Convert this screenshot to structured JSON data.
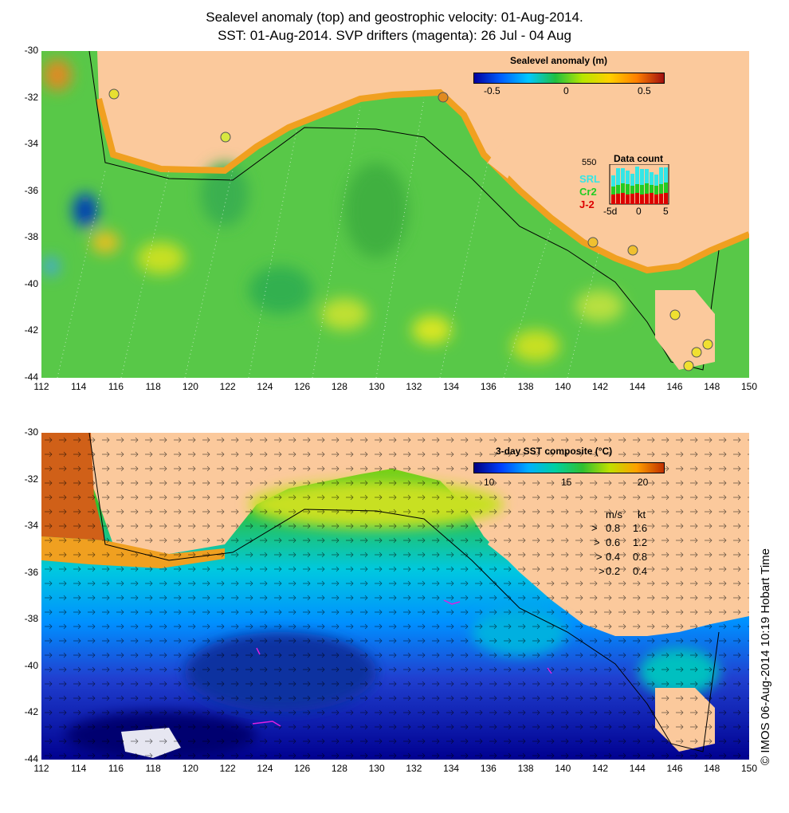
{
  "title_line1": "Sealevel anomaly (top) and geostrophic velocity: 01-Aug-2014.",
  "title_line2": "SST: 01-Aug-2014. SVP drifters (magenta): 26 Jul - 04 Aug",
  "y_ticks": [
    "-30",
    "-32",
    "-34",
    "-36",
    "-38",
    "-40",
    "-42",
    "-44"
  ],
  "x_ticks": [
    "112",
    "114",
    "116",
    "118",
    "120",
    "122",
    "124",
    "126",
    "128",
    "130",
    "132",
    "134",
    "136",
    "138",
    "140",
    "142",
    "144",
    "146",
    "148",
    "150"
  ],
  "top_panel": {
    "colorbar_title": "Sealevel anomaly (m)",
    "colorbar_ticks": [
      "-0.5",
      "0",
      "0.5"
    ],
    "data_count": {
      "title": "Data count",
      "max_label": "550",
      "series": [
        {
          "name": "SRL",
          "color": "#33e6e6"
        },
        {
          "name": "Cr2",
          "color": "#22cc22"
        },
        {
          "name": "J-2",
          "color": "#dd0000"
        }
      ],
      "axis_ticks": [
        "-5d",
        "0",
        "5"
      ]
    }
  },
  "bottom_panel": {
    "colorbar_title": "3-day SST composite (°C)",
    "colorbar_ticks": [
      "10",
      "15",
      "20"
    ],
    "velocity_legend": {
      "headers": [
        "m/s",
        "kt"
      ],
      "rows": [
        {
          "ms": "0.8",
          "kt": "1.6"
        },
        {
          "ms": "0.6",
          "kt": "1.2"
        },
        {
          "ms": "0.4",
          "kt": "0.8"
        },
        {
          "ms": "0.2",
          "kt": "0.4"
        }
      ]
    }
  },
  "credit": "© IMOS 06-Aug-2014 10:19 Hobart Time",
  "colors": {
    "land": "#fbc99c",
    "ssh_gradient": [
      "#0000a0",
      "#0060ff",
      "#00c8ff",
      "#20c040",
      "#b8e600",
      "#ffd000",
      "#ff8000",
      "#a01010"
    ],
    "sst_gradient": [
      "#000080",
      "#0040ff",
      "#00b0ff",
      "#00d0a0",
      "#30c030",
      "#c0e000",
      "#ffa000",
      "#c03000"
    ]
  }
}
